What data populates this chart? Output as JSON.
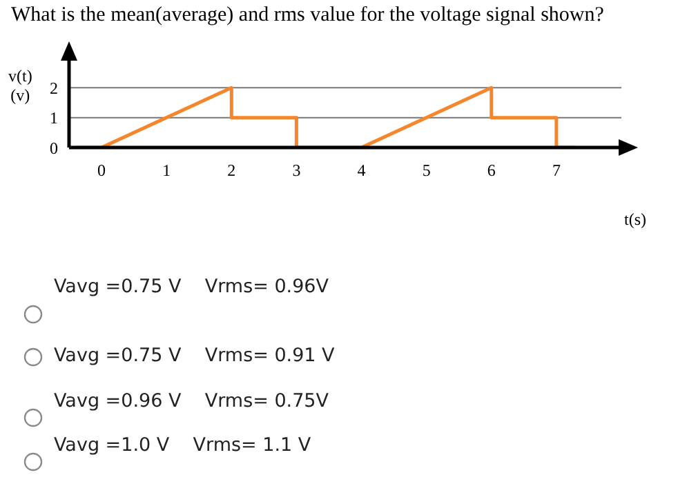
{
  "chart_data": {
    "type": "line",
    "title": "What is the mean(average) and rms value for the voltage signal shown?",
    "xlabel": "t(s)",
    "ylabel": "v(t) (v)",
    "x": [
      -0.4,
      0,
      2,
      2,
      3,
      3,
      4,
      6,
      6,
      7,
      7,
      7.3
    ],
    "series": [
      {
        "color": "#f5862b",
        "values": [
          0,
          0,
          2,
          1,
          1,
          0,
          0,
          2,
          1,
          1,
          0,
          0
        ]
      }
    ],
    "xlim": [
      -0.5,
      8
    ],
    "xticks": [
      0,
      1,
      2,
      3,
      4,
      5,
      6,
      7
    ],
    "ylim": [
      0,
      3
    ],
    "yticks": [
      0,
      1,
      2
    ],
    "grid": "y",
    "marker": "none",
    "line_style": "solid",
    "annotations": [
      "Vavg =0.75 V    Vrms= 0.96V",
      "Vavg =0.75 V    Vrms= 0.91 V",
      "Vavg =0.96 V    Vrms= 0.75V",
      "Vavg =1.0 V    Vrms= 1.1 V"
    ]
  }
}
